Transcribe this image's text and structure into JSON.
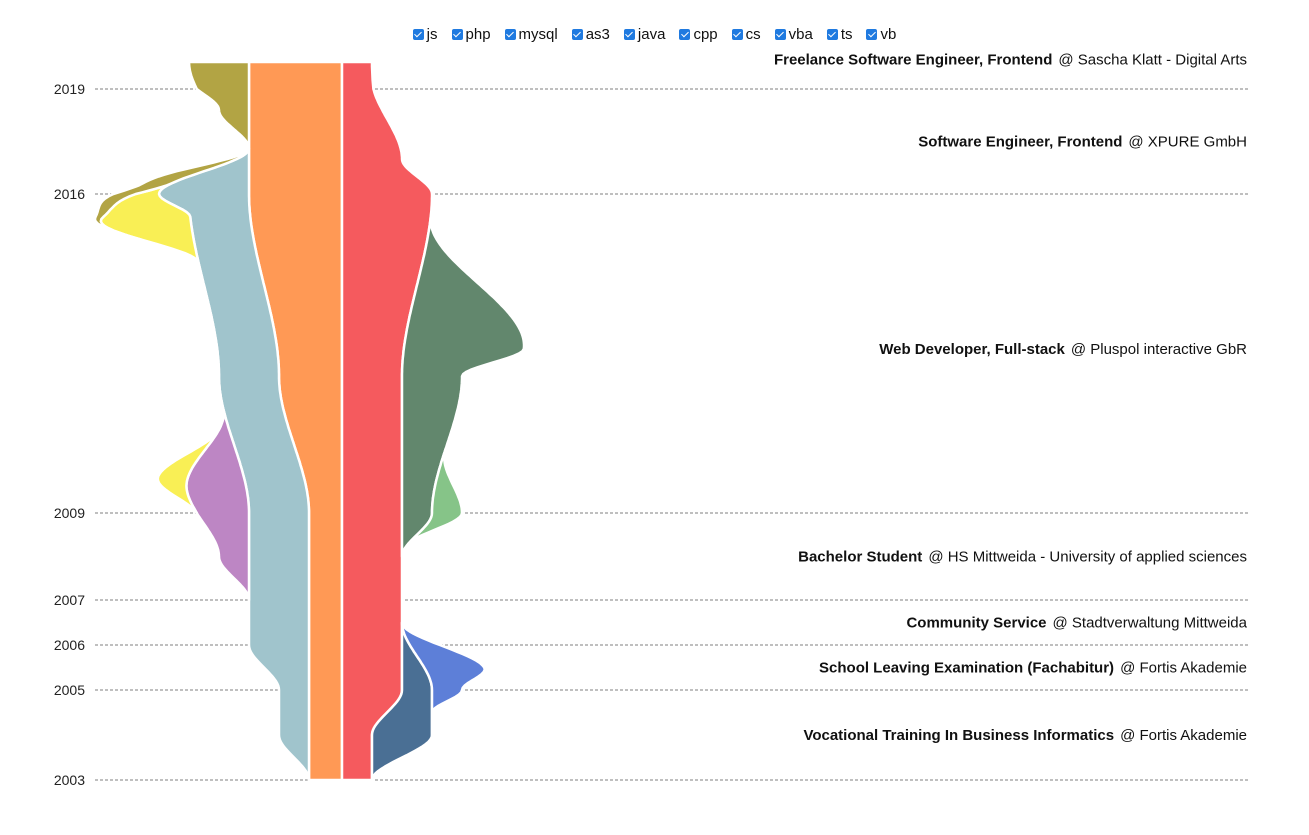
{
  "legend": [
    {
      "key": "js",
      "label": "js",
      "checked": true
    },
    {
      "key": "php",
      "label": "php",
      "checked": true
    },
    {
      "key": "mysql",
      "label": "mysql",
      "checked": true
    },
    {
      "key": "as3",
      "label": "as3",
      "checked": true
    },
    {
      "key": "java",
      "label": "java",
      "checked": true
    },
    {
      "key": "cpp",
      "label": "cpp",
      "checked": true
    },
    {
      "key": "cs",
      "label": "cs",
      "checked": true
    },
    {
      "key": "vba",
      "label": "vba",
      "checked": true
    },
    {
      "key": "ts",
      "label": "ts",
      "checked": true
    },
    {
      "key": "vb",
      "label": "vb",
      "checked": true
    }
  ],
  "chart_data": {
    "type": "area",
    "title": "",
    "xlabel": "",
    "ylabel": "",
    "ylim": [
      2003,
      2019.3
    ],
    "grid": "dashed lines at year ticks",
    "legend_placement": "top-center",
    "year_ticks": [
      "2019",
      "2016",
      "2009",
      "2007",
      "2006",
      "2005",
      "2003"
    ],
    "year_tick_values": [
      2019,
      2016,
      2009,
      2007,
      2006,
      2005,
      2003
    ],
    "jobs": [
      {
        "title": "Freelance Software Engineer, Frontend",
        "org": "@ Sascha Klatt - Digital Arts",
        "year": 2019.33
      },
      {
        "title": "Software Engineer, Frontend",
        "org": "@ XPURE GmbH",
        "year": 2017.5
      },
      {
        "title": "Web Developer, Full-stack",
        "org": "@ Pluspol interactive GbR",
        "year": 2012.6
      },
      {
        "title": "Bachelor Student",
        "org": "@ HS Mittweida - University of applied sciences",
        "year": 2008.0
      },
      {
        "title": "Community Service",
        "org": "@ Stadtverwaltung Mittweida",
        "year": 2006.5
      },
      {
        "title": "School Leaving Examination (Fachabitur)",
        "org": "@ Fortis Akademie",
        "year": 2005.5
      },
      {
        "title": "Vocational Training In Business Informatics",
        "org": "@ Fortis Akademie",
        "year": 2004.0
      }
    ],
    "series": [
      {
        "key": "php",
        "side": "left",
        "color": "#ff9955",
        "y": [
          2003,
          2005,
          2006,
          2009,
          2012,
          2016,
          2017.5,
          2019.3
        ],
        "v": [
          1.1,
          1.1,
          1.1,
          1.1,
          2.1,
          3.1,
          3.1,
          3.1
        ]
      },
      {
        "key": "mysql",
        "side": "left",
        "color": "#a0c4cc",
        "y": [
          2003,
          2004,
          2005,
          2006,
          2007,
          2008,
          2009,
          2011.5,
          2012,
          2013.5,
          2014.5,
          2015.5,
          2016,
          2017.3
        ],
        "v": [
          0,
          1,
          1,
          2,
          2,
          2,
          2,
          2,
          2,
          2,
          2,
          2,
          3,
          0
        ]
      },
      {
        "key": "java",
        "side": "left",
        "color": "#bd86c4",
        "y": [
          2007,
          2008,
          2009.5,
          2011.3
        ],
        "v": [
          0,
          1,
          2,
          0
        ]
      },
      {
        "key": "cs",
        "side": "left",
        "color": "#f9ef55",
        "y": [
          2009,
          2009.8,
          2010.8,
          2014.5,
          2015.4,
          2016.3
        ],
        "v": [
          0,
          1,
          0,
          0,
          3,
          0
        ]
      },
      {
        "key": "vba",
        "side": "left",
        "color": "#b2a444",
        "y": [
          2015,
          2016.5,
          2017.3,
          2018.4,
          2019.3
        ],
        "v": [
          0,
          1,
          0,
          1,
          2
        ]
      },
      {
        "key": "js",
        "side": "right",
        "color": "#f55a5e",
        "y": [
          2003,
          2004,
          2005,
          2006,
          2009,
          2012,
          2016,
          2017,
          2019.3
        ],
        "v": [
          1,
          1,
          2,
          2,
          2,
          2,
          3,
          2,
          1
        ]
      },
      {
        "key": "as3",
        "side": "right",
        "color": "#62876d",
        "y": [
          2008,
          2009,
          2012,
          2012.6,
          2015.5
        ],
        "v": [
          0,
          1,
          2,
          4,
          0
        ]
      },
      {
        "key": "vb",
        "side": "right",
        "color": "#86c488",
        "y": [
          2008.3,
          2009,
          2010.4
        ],
        "v": [
          0,
          1,
          0
        ]
      },
      {
        "key": "cpp",
        "side": "right",
        "color": "#4a6f94",
        "y": [
          2003,
          2004,
          2005,
          2006.5
        ],
        "v": [
          0,
          2,
          1,
          0
        ]
      },
      {
        "key": "ts",
        "side": "right",
        "color": "#5d7fd8",
        "y": [
          2004,
          2004.5,
          2005,
          2005.5,
          2006.5
        ],
        "v": [
          0,
          0,
          1,
          2,
          0
        ]
      }
    ]
  }
}
